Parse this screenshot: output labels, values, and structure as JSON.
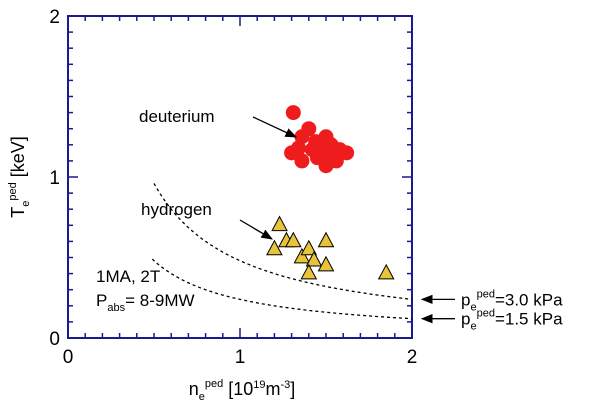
{
  "chart_data": {
    "type": "scatter",
    "xlim": [
      0,
      2
    ],
    "ylim": [
      0,
      2
    ],
    "x_ticks": [
      "0",
      "1",
      "2"
    ],
    "y_ticks": [
      "0",
      "1",
      "2"
    ],
    "xlabel": {
      "base": "n",
      "sub": "e",
      "sup": "ped",
      "unit_pre": " [10",
      "unit_sup1": "19",
      "unit_mid": "m",
      "unit_sup2": "-3",
      "unit_post": "]"
    },
    "ylabel": {
      "base": "T",
      "sub": "e",
      "sup": "ped",
      "unit": " [keV]"
    },
    "grid": false,
    "series": [
      {
        "marker": "circle",
        "color": "#ee1c1c",
        "points": [
          [
            1.31,
            1.4
          ],
          [
            1.36,
            1.25
          ],
          [
            1.4,
            1.3
          ],
          [
            1.44,
            1.22
          ],
          [
            1.5,
            1.25
          ],
          [
            1.47,
            1.18
          ],
          [
            1.53,
            1.2
          ],
          [
            1.58,
            1.17
          ],
          [
            1.62,
            1.15
          ],
          [
            1.3,
            1.15
          ],
          [
            1.36,
            1.1
          ],
          [
            1.45,
            1.12
          ],
          [
            1.5,
            1.07
          ],
          [
            1.56,
            1.1
          ],
          [
            1.48,
            1.15
          ],
          [
            1.42,
            1.17
          ],
          [
            1.55,
            1.13
          ],
          [
            1.34,
            1.18
          ]
        ]
      },
      {
        "marker": "triangle",
        "color": "#e8c43a",
        "points": [
          [
            1.23,
            0.7
          ],
          [
            1.27,
            0.6
          ],
          [
            1.2,
            0.55
          ],
          [
            1.31,
            0.6
          ],
          [
            1.36,
            0.5
          ],
          [
            1.4,
            0.55
          ],
          [
            1.43,
            0.48
          ],
          [
            1.4,
            0.4
          ],
          [
            1.5,
            0.6
          ],
          [
            1.5,
            0.45
          ],
          [
            1.85,
            0.4
          ]
        ]
      }
    ],
    "isobars": [
      {
        "p": 0.48,
        "x_range": [
          0.5,
          2.0
        ],
        "label_value": "=3.0",
        "label_unit": "kPa"
      },
      {
        "p": 0.24,
        "x_range": [
          0.49,
          2.0
        ],
        "label_value": "=1.5",
        "label_unit": "kPa"
      }
    ],
    "isobar_label": {
      "base": "p",
      "sub": "e",
      "sup": "ped"
    },
    "annotations": {
      "deuterium": "deuterium",
      "hydrogen": "hydrogen",
      "condition_line1": "1MA, 2T",
      "condition_line2_base": "P",
      "condition_line2_sub": "abs",
      "condition_line2_rest": "= 8-9MW"
    }
  }
}
